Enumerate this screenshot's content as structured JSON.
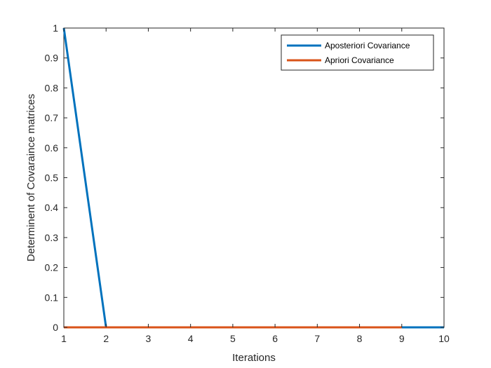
{
  "chart_data": {
    "type": "line",
    "title": "",
    "xlabel": "Iterations",
    "ylabel": "Determinent of Covaraince matrices",
    "xlim": [
      1,
      10
    ],
    "ylim": [
      0,
      1
    ],
    "xticks": [
      "1",
      "2",
      "3",
      "4",
      "5",
      "6",
      "7",
      "8",
      "9",
      "10"
    ],
    "yticks": [
      "0",
      "0.1",
      "0.2",
      "0.3",
      "0.4",
      "0.5",
      "0.6",
      "0.7",
      "0.8",
      "0.9",
      "1"
    ],
    "grid": false,
    "legend_position": "top-right",
    "series": [
      {
        "name": "Aposteriori Covariance",
        "color": "#0072BD",
        "x": [
          1,
          2,
          3,
          4,
          5,
          6,
          7,
          8,
          9,
          10
        ],
        "y": [
          1,
          0,
          0,
          0,
          0,
          0,
          0,
          0,
          0,
          0
        ]
      },
      {
        "name": "Apriori Covariance",
        "color": "#D95319",
        "x": [
          1,
          2,
          3,
          4,
          5,
          6,
          7,
          8,
          9
        ],
        "y": [
          0,
          0,
          0,
          0,
          0,
          0,
          0,
          0,
          0
        ]
      }
    ]
  }
}
